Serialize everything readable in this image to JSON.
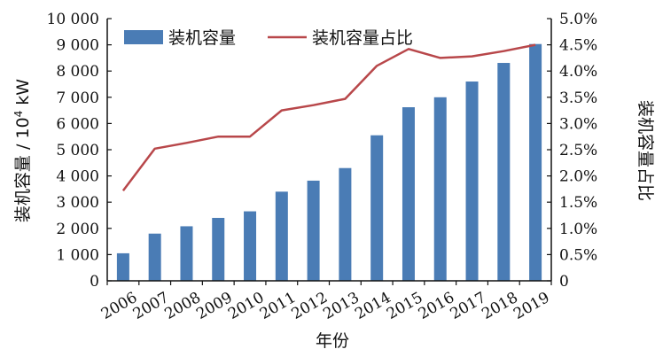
{
  "chart_data": {
    "type": "bar",
    "categories": [
      "2006",
      "2007",
      "2008",
      "2009",
      "2010",
      "2011",
      "2012",
      "2013",
      "2014",
      "2015",
      "2016",
      "2017",
      "2018",
      "2019"
    ],
    "series": [
      {
        "name": "装机容量",
        "type": "bar",
        "axis": "left",
        "color": "#4a7cb5",
        "values": [
          1050,
          1800,
          2080,
          2400,
          2650,
          3400,
          3820,
          4300,
          5550,
          6620,
          7000,
          7600,
          8310,
          9030
        ]
      },
      {
        "name": "装机容量占比",
        "type": "line",
        "axis": "right",
        "color": "#b8474a",
        "values": [
          1.72,
          2.52,
          2.63,
          2.75,
          2.75,
          3.25,
          3.35,
          3.47,
          4.1,
          4.42,
          4.25,
          4.28,
          4.38,
          4.5
        ]
      }
    ],
    "xlabel": "年份",
    "ylabel_left_main": "装机容量 / 10",
    "ylabel_left_sup": "4",
    "ylabel_left_unit": " kW",
    "ylabel_right": "装机容量占比",
    "ylim_left": [
      0,
      10000
    ],
    "ylim_right": [
      0,
      5.0
    ],
    "yticks_left": [
      "0",
      "1 000",
      "2 000",
      "3 000",
      "4 000",
      "5 000",
      "6 000",
      "7 000",
      "8 000",
      "9 000",
      "10 000"
    ],
    "yticks_right": [
      "0",
      "0.5%",
      "1.0%",
      "1.5%",
      "2.0%",
      "2.5%",
      "3.0%",
      "3.5%",
      "4.0%",
      "4.5%",
      "5.0%"
    ],
    "legend_position": "top-left",
    "grid": false
  }
}
